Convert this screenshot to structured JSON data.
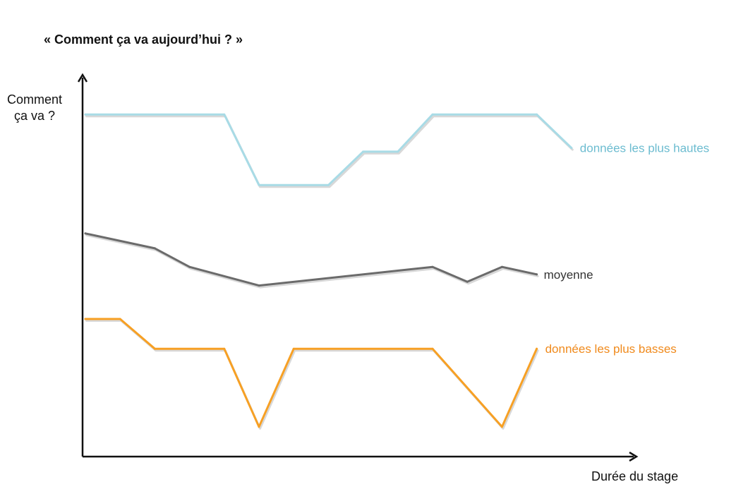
{
  "chart_data": {
    "type": "line",
    "title": "« Comment ça va aujourd’hui ? »",
    "ylabel": [
      "Comment",
      "ça va ?"
    ],
    "xlabel": "Durée du stage",
    "ylim": [
      0,
      100
    ],
    "grid": false,
    "series": [
      {
        "name": "données les plus hautes",
        "color": "#a8dbe6",
        "label_color": "#6cbcd0",
        "x": [
          0,
          4,
          5,
          7,
          8,
          9,
          10,
          13,
          14
        ],
        "values": [
          92,
          92,
          73,
          73,
          82,
          82,
          92,
          92,
          83
        ]
      },
      {
        "name": "moyenne",
        "color": "#6b6b6b",
        "label_color": "#333333",
        "x": [
          0,
          2,
          3,
          5,
          10,
          11,
          12,
          13
        ],
        "values": [
          60,
          56,
          51,
          46,
          51,
          47,
          51,
          49
        ]
      },
      {
        "name": "données les plus basses",
        "color": "#f7a024",
        "label_color": "#f08a1c",
        "x": [
          0,
          1,
          2,
          4,
          5,
          6,
          10,
          12,
          13
        ],
        "values": [
          37,
          37,
          29,
          29,
          8,
          29,
          29,
          8,
          29
        ]
      }
    ]
  }
}
